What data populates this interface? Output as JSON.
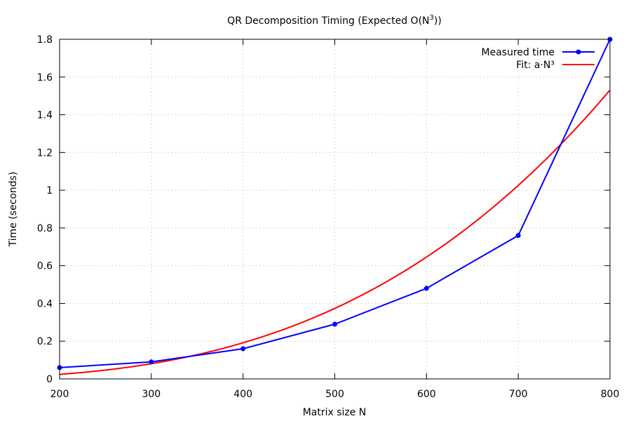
{
  "chart_data": {
    "type": "line",
    "title": "QR Decomposition Timing (Expected O(N",
    "title_superscript": "3",
    "title_suffix": "))",
    "xlabel": "Matrix size N",
    "ylabel": "Time (seconds)",
    "xlim": [
      200,
      800
    ],
    "ylim": [
      0,
      1.8
    ],
    "xticks": [
      200,
      300,
      400,
      500,
      600,
      700,
      800
    ],
    "yticks": [
      0,
      0.2,
      0.4,
      0.6,
      0.8,
      1,
      1.2,
      1.4,
      1.6,
      1.8
    ],
    "xtick_labels": [
      "200",
      "300",
      "400",
      "500",
      "600",
      "700",
      "800"
    ],
    "ytick_labels": [
      "0",
      "0.2",
      "0.4",
      "0.6",
      "0.8",
      "1",
      "1.2",
      "1.4",
      "1.6",
      "1.8"
    ],
    "grid": true,
    "legend_position": "top-right",
    "series": [
      {
        "name": "Measured time",
        "style": "linespoints",
        "color": "#0000ff",
        "x": [
          200,
          300,
          400,
          500,
          600,
          700,
          800
        ],
        "y": [
          0.06,
          0.09,
          0.16,
          0.29,
          0.48,
          0.76,
          1.8
        ]
      },
      {
        "name": "Fit: a·N³",
        "style": "curve",
        "color": "#ff0000",
        "function": "a*N^3",
        "a": 2.99e-09
      }
    ]
  }
}
